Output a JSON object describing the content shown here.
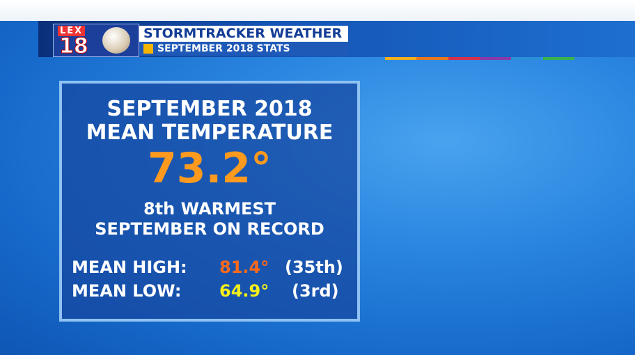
{
  "logo": {
    "top": "LEX",
    "number": "18"
  },
  "header": {
    "title": "STORMTRACKER WEATHER",
    "subtitle": "SEPTEMBER 2018 STATS"
  },
  "panel": {
    "heading": [
      "SEPTEMBER 2018",
      "MEAN TEMPERATURE"
    ],
    "mean_temperature": "73.2°",
    "ranking": [
      "8th WARMEST",
      "SEPTEMBER ON RECORD"
    ],
    "rows": [
      [
        "MEAN HIGH:",
        "81.4°",
        "(35th)"
      ],
      [
        "MEAN LOW:",
        "64.9°",
        "(3rd)"
      ]
    ]
  }
}
